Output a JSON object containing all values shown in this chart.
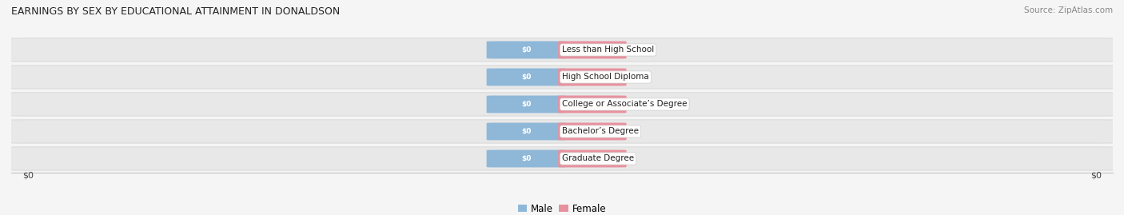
{
  "title": "EARNINGS BY SEX BY EDUCATIONAL ATTAINMENT IN DONALDSON",
  "source": "Source: ZipAtlas.com",
  "categories": [
    "Less than High School",
    "High School Diploma",
    "College or Associate’s Degree",
    "Bachelor’s Degree",
    "Graduate Degree"
  ],
  "male_values": [
    0,
    0,
    0,
    0,
    0
  ],
  "female_values": [
    0,
    0,
    0,
    0,
    0
  ],
  "male_color": "#8fb8d8",
  "female_color": "#e8919e",
  "bar_label": "$0",
  "background_color": "#f5f5f5",
  "row_bg_color": "#e8e8e8",
  "row_bg_edge_color": "#d0d0d0",
  "legend_male": "Male",
  "legend_female": "Female",
  "xlabel_left": "$0",
  "xlabel_right": "$0"
}
